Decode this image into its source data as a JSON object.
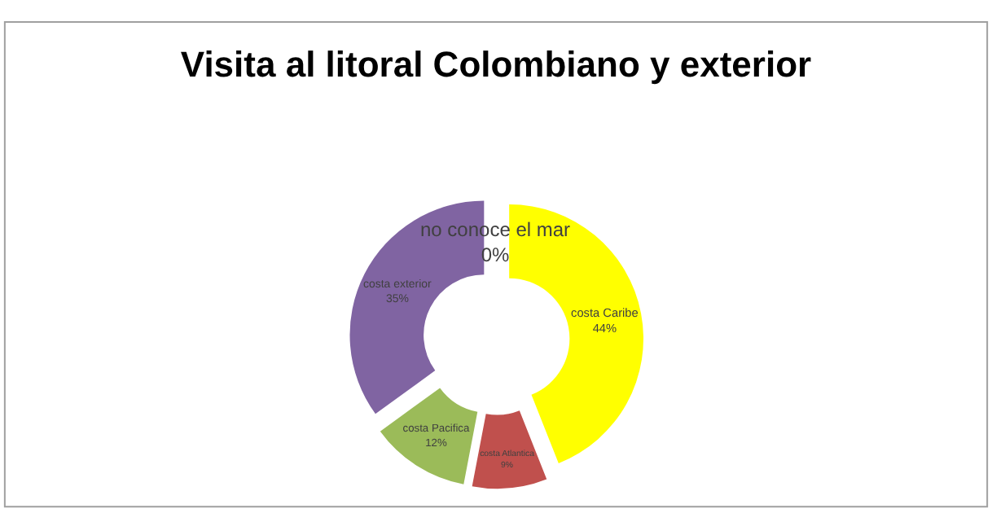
{
  "chart_data": {
    "type": "donut",
    "title": "Visita al litoral Colombiano y exterior",
    "categories": [
      "costa Caribe",
      "costa Atlantica",
      "costa Pacifica",
      "costa exterior",
      "no conoce el mar"
    ],
    "values": [
      44,
      9,
      12,
      35,
      0
    ],
    "value_labels": [
      "44%",
      "9%",
      "12%",
      "35%",
      "0%"
    ],
    "colors": [
      "#ffff00",
      "#c0504d",
      "#9bbb59",
      "#8064a2",
      "#4bacc6"
    ],
    "legend": false
  }
}
